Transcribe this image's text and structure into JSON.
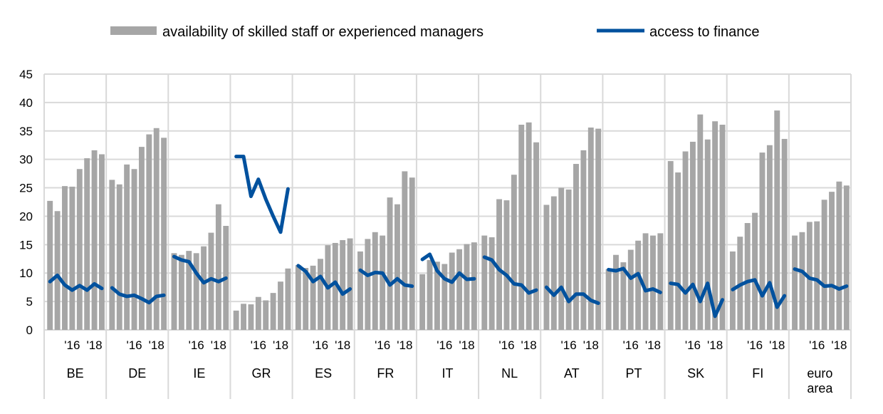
{
  "chart_data": {
    "type": "bar",
    "title": "",
    "xlabel": "",
    "ylabel": "",
    "ylim": [
      0,
      45
    ],
    "yticks": [
      "0",
      "5",
      "10",
      "15",
      "20",
      "25",
      "30",
      "35",
      "40",
      "45"
    ],
    "grid": true,
    "legend_placement": "top",
    "legend": [
      {
        "name": "availability of skilled staff or experienced managers",
        "kind": "bar",
        "color": "#a6a6a6"
      },
      {
        "name": "access to finance",
        "kind": "line",
        "color": "#00519e"
      }
    ],
    "period_labels": [
      "'16",
      "'18"
    ],
    "groups": [
      {
        "label": "BE",
        "bars": [
          22.7,
          20.9,
          25.3,
          25.2,
          28.3,
          30.2,
          31.6,
          30.9
        ],
        "line": [
          8.5,
          9.6,
          7.9,
          7.0,
          7.8,
          7.0,
          8.1,
          7.3
        ]
      },
      {
        "label": "DE",
        "bars": [
          26.4,
          25.6,
          29.1,
          28.3,
          32.2,
          34.4,
          35.5,
          33.8
        ],
        "line": [
          7.4,
          6.3,
          5.9,
          6.1,
          5.5,
          4.8,
          5.9,
          6.1
        ]
      },
      {
        "label": "IE",
        "bars": [
          13.5,
          13.2,
          13.9,
          13.5,
          14.7,
          17.1,
          22.1,
          18.3
        ],
        "line": [
          12.9,
          12.3,
          12.0,
          10.0,
          8.3,
          9.0,
          8.5,
          9.1
        ]
      },
      {
        "label": "GR",
        "bars": [
          3.4,
          4.6,
          4.5,
          5.8,
          5.2,
          6.5,
          8.5,
          10.8
        ],
        "line": [
          30.5,
          30.5,
          23.5,
          26.5,
          23.0,
          20.0,
          17.2,
          24.8
        ]
      },
      {
        "label": "ES",
        "bars": [
          11.4,
          10.9,
          11.3,
          12.5,
          14.9,
          15.3,
          15.8,
          16.1
        ],
        "line": [
          11.3,
          10.3,
          8.5,
          9.4,
          7.4,
          8.4,
          6.3,
          7.2
        ]
      },
      {
        "label": "FR",
        "bars": [
          13.8,
          16.0,
          17.2,
          16.6,
          23.3,
          22.1,
          27.9,
          26.8
        ],
        "line": [
          10.5,
          9.6,
          10.1,
          10.0,
          7.9,
          9.0,
          7.9,
          7.7
        ]
      },
      {
        "label": "IT",
        "bars": [
          9.8,
          12.3,
          12.0,
          11.6,
          13.6,
          14.2,
          15.1,
          15.4
        ],
        "line": [
          12.4,
          13.3,
          10.4,
          9.0,
          8.4,
          10.0,
          8.9,
          9.0
        ]
      },
      {
        "label": "NL",
        "bars": [
          16.6,
          16.3,
          23.0,
          22.8,
          27.3,
          36.1,
          36.5,
          33.0
        ],
        "line": [
          12.8,
          12.3,
          10.6,
          9.6,
          8.1,
          7.9,
          6.5,
          7.0
        ]
      },
      {
        "label": "AT",
        "bars": [
          22.0,
          23.5,
          25.0,
          24.7,
          29.2,
          31.6,
          35.6,
          35.4
        ],
        "line": [
          7.5,
          6.1,
          7.5,
          5.0,
          6.3,
          6.3,
          5.2,
          4.7
        ]
      },
      {
        "label": "PT",
        "bars": [
          10.7,
          13.2,
          11.9,
          14.1,
          15.7,
          17.0,
          16.6,
          17.0
        ],
        "line": [
          10.6,
          10.4,
          10.8,
          9.1,
          9.9,
          6.9,
          7.2,
          6.6
        ]
      },
      {
        "label": "SK",
        "bars": [
          29.7,
          27.7,
          31.4,
          33.1,
          37.9,
          33.5,
          36.7,
          36.1
        ],
        "line": [
          8.2,
          8.0,
          6.5,
          8.0,
          5.0,
          8.2,
          2.4,
          5.3
        ]
      },
      {
        "label": "FI",
        "bars": [
          13.8,
          16.4,
          18.8,
          20.6,
          31.2,
          32.5,
          38.6,
          33.6
        ],
        "line": [
          7.1,
          7.9,
          8.5,
          8.8,
          6.0,
          8.3,
          4.0,
          6.0
        ]
      },
      {
        "label": "euro area",
        "label_lines": [
          "euro",
          "area"
        ],
        "bars": [
          16.6,
          17.2,
          19.0,
          19.1,
          22.9,
          24.3,
          26.1,
          25.4
        ],
        "line": [
          10.7,
          10.3,
          9.1,
          8.8,
          7.7,
          7.8,
          7.2,
          7.7
        ]
      }
    ]
  }
}
